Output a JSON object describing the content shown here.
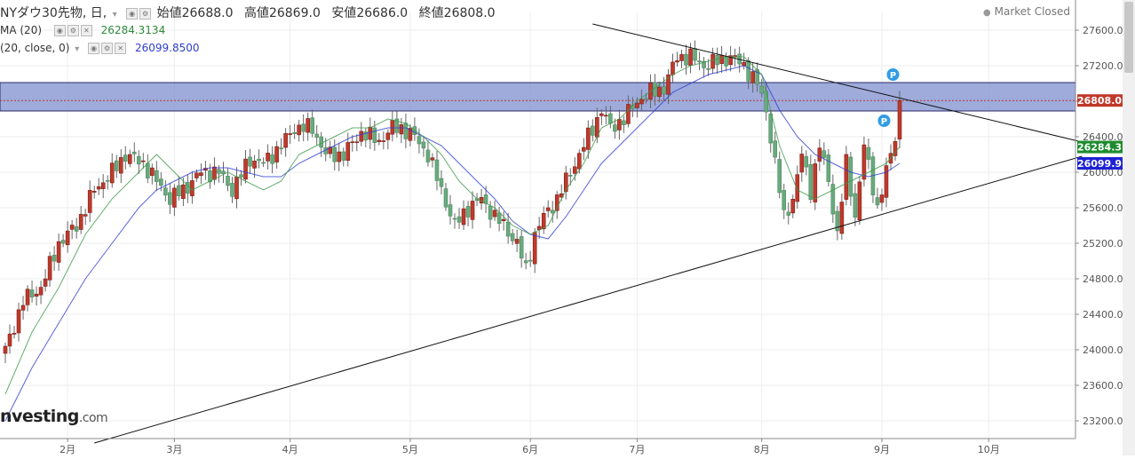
{
  "header": {
    "symbol": "NYダウ30先物, 日,",
    "open_label": "始値",
    "open": "26688.0",
    "high_label": "高値",
    "high": "26869.0",
    "low_label": "安値",
    "low": "26686.0",
    "close_label": "終値",
    "close": "26808.0",
    "ind1_name": "MA (20)",
    "ind1_value": "26284.3134",
    "ind2_name": "(20, close, 0)",
    "ind2_value": "26099.8500",
    "status": "Market Closed",
    "logo_main": "nvesting",
    "logo_suffix": ".com"
  },
  "colors": {
    "up": "#c0392b",
    "down": "#6aaa7e",
    "ma_green": "#3f9a4a",
    "ma_blue": "#2f3fcf",
    "zone": "#7d8fcf",
    "price_tag": "#c0392b",
    "ma_green_tag": "#1e8c2e",
    "ma_blue_tag": "#1f22d4"
  },
  "markers": [
    {
      "label": "P"
    },
    {
      "label": "P"
    }
  ],
  "chart_data": {
    "type": "candlestick",
    "y_axis": {
      "range": [
        23000,
        27800
      ],
      "ticks": [
        23200,
        23600,
        24000,
        24400,
        24800,
        25200,
        25600,
        26000,
        26400,
        26800,
        27200,
        27600
      ]
    },
    "y_tick_labels": [
      "23200.0",
      "23600.0",
      "24000.0",
      "24400.0",
      "24800.0",
      "25200.0",
      "25600.0",
      "26000.0",
      "26400.0",
      "26800.0",
      "27200.0",
      "27600.0"
    ],
    "x_axis": {
      "months": [
        {
          "label": "2月",
          "index": 14
        },
        {
          "label": "3月",
          "index": 38
        },
        {
          "label": "4月",
          "index": 64
        },
        {
          "label": "5月",
          "index": 91
        },
        {
          "label": "6月",
          "index": 118
        },
        {
          "label": "7月",
          "index": 142
        },
        {
          "label": "8月",
          "index": 170
        },
        {
          "label": "9月",
          "index": 197
        },
        {
          "label": "10月",
          "index": 221
        }
      ],
      "count": 240
    },
    "price_tags": [
      {
        "label": "26808.0",
        "value": 26808,
        "color_key": "price_tag"
      },
      {
        "label": "26284.3",
        "value": 26284.3,
        "color_key": "ma_green_tag"
      },
      {
        "label": "26099.9",
        "value": 26099.9,
        "color_key": "ma_blue_tag"
      }
    ],
    "resistance_zone": [
      26690,
      27010
    ],
    "current_price_line": 26808,
    "trendlines": [
      {
        "name": "upper",
        "p1": [
          132,
          27670
        ],
        "p2": [
          242,
          26340
        ]
      },
      {
        "name": "lower",
        "p1": [
          20,
          22950
        ],
        "p2": [
          242,
          26180
        ]
      }
    ],
    "ma_fast": [
      [
        0,
        23500
      ],
      [
        6,
        24200
      ],
      [
        12,
        24700
      ],
      [
        18,
        25300
      ],
      [
        24,
        25700
      ],
      [
        30,
        26000
      ],
      [
        34,
        26200
      ],
      [
        38,
        26000
      ],
      [
        42,
        25800
      ],
      [
        46,
        25900
      ],
      [
        50,
        26000
      ],
      [
        54,
        25900
      ],
      [
        58,
        25800
      ],
      [
        62,
        25900
      ],
      [
        66,
        26200
      ],
      [
        70,
        26300
      ],
      [
        74,
        26400
      ],
      [
        78,
        26500
      ],
      [
        82,
        26500
      ],
      [
        86,
        26600
      ],
      [
        90,
        26550
      ],
      [
        94,
        26400
      ],
      [
        98,
        26200
      ],
      [
        102,
        25900
      ],
      [
        106,
        25700
      ],
      [
        110,
        25600
      ],
      [
        114,
        25400
      ],
      [
        118,
        25300
      ],
      [
        122,
        25400
      ],
      [
        126,
        25800
      ],
      [
        130,
        26100
      ],
      [
        134,
        26500
      ],
      [
        138,
        26600
      ],
      [
        142,
        26800
      ],
      [
        146,
        26950
      ],
      [
        150,
        27100
      ],
      [
        154,
        27200
      ],
      [
        158,
        27250
      ],
      [
        162,
        27300
      ],
      [
        166,
        27300
      ],
      [
        170,
        27100
      ],
      [
        174,
        26300
      ],
      [
        178,
        25800
      ],
      [
        182,
        25700
      ],
      [
        186,
        25800
      ],
      [
        190,
        25900
      ],
      [
        194,
        26000
      ],
      [
        198,
        26100
      ],
      [
        201,
        26284.3
      ]
    ],
    "ma_slow": [
      [
        0,
        23200
      ],
      [
        6,
        23800
      ],
      [
        12,
        24300
      ],
      [
        18,
        24800
      ],
      [
        24,
        25200
      ],
      [
        30,
        25600
      ],
      [
        34,
        25800
      ],
      [
        38,
        25900
      ],
      [
        42,
        26000
      ],
      [
        46,
        26050
      ],
      [
        50,
        26050
      ],
      [
        54,
        26000
      ],
      [
        58,
        25950
      ],
      [
        62,
        25950
      ],
      [
        66,
        26100
      ],
      [
        70,
        26200
      ],
      [
        74,
        26300
      ],
      [
        78,
        26400
      ],
      [
        82,
        26450
      ],
      [
        86,
        26500
      ],
      [
        90,
        26500
      ],
      [
        94,
        26400
      ],
      [
        98,
        26300
      ],
      [
        102,
        26100
      ],
      [
        106,
        25900
      ],
      [
        110,
        25700
      ],
      [
        114,
        25450
      ],
      [
        118,
        25300
      ],
      [
        122,
        25250
      ],
      [
        126,
        25500
      ],
      [
        130,
        25800
      ],
      [
        134,
        26100
      ],
      [
        138,
        26300
      ],
      [
        142,
        26500
      ],
      [
        146,
        26700
      ],
      [
        150,
        26900
      ],
      [
        154,
        27000
      ],
      [
        158,
        27100
      ],
      [
        162,
        27150
      ],
      [
        166,
        27200
      ],
      [
        170,
        27100
      ],
      [
        174,
        26700
      ],
      [
        178,
        26400
      ],
      [
        182,
        26200
      ],
      [
        186,
        26100
      ],
      [
        190,
        26000
      ],
      [
        194,
        25950
      ],
      [
        198,
        26000
      ],
      [
        201,
        26099.9
      ]
    ],
    "key_points": [
      [
        0,
        24000
      ],
      [
        4,
        24550
      ],
      [
        8,
        24700
      ],
      [
        12,
        25200
      ],
      [
        16,
        25400
      ],
      [
        20,
        25800
      ],
      [
        24,
        26000
      ],
      [
        27,
        26200
      ],
      [
        31,
        26100
      ],
      [
        34,
        25900
      ],
      [
        37,
        25700
      ],
      [
        40,
        25800
      ],
      [
        44,
        26000
      ],
      [
        48,
        26000
      ],
      [
        51,
        25800
      ],
      [
        55,
        26150
      ],
      [
        58,
        26100
      ],
      [
        62,
        26300
      ],
      [
        65,
        26500
      ],
      [
        69,
        26500
      ],
      [
        72,
        26200
      ],
      [
        76,
        26200
      ],
      [
        80,
        26450
      ],
      [
        84,
        26350
      ],
      [
        87,
        26500
      ],
      [
        89,
        26500
      ],
      [
        92,
        26400
      ],
      [
        95,
        26200
      ],
      [
        98,
        25800
      ],
      [
        101,
        25400
      ],
      [
        104,
        25600
      ],
      [
        107,
        25700
      ],
      [
        110,
        25500
      ],
      [
        112,
        25400
      ],
      [
        115,
        25200
      ],
      [
        117,
        24900
      ],
      [
        119,
        25300
      ],
      [
        121,
        25500
      ],
      [
        124,
        25700
      ],
      [
        127,
        26000
      ],
      [
        130,
        26300
      ],
      [
        134,
        26700
      ],
      [
        136,
        26500
      ],
      [
        139,
        26600
      ],
      [
        142,
        26800
      ],
      [
        145,
        26900
      ],
      [
        148,
        26950
      ],
      [
        151,
        27300
      ],
      [
        154,
        27300
      ],
      [
        157,
        27200
      ],
      [
        160,
        27250
      ],
      [
        163,
        27300
      ],
      [
        166,
        27200
      ],
      [
        169,
        27000
      ],
      [
        171,
        26700
      ],
      [
        173,
        26100
      ],
      [
        175,
        25500
      ],
      [
        177,
        25700
      ],
      [
        179,
        26200
      ],
      [
        181,
        25800
      ],
      [
        183,
        26300
      ],
      [
        185,
        25900
      ],
      [
        187,
        25300
      ],
      [
        189,
        26100
      ],
      [
        191,
        25500
      ],
      [
        193,
        26300
      ],
      [
        196,
        25600
      ],
      [
        198,
        26000
      ],
      [
        200,
        26400
      ],
      [
        201,
        26808
      ]
    ]
  }
}
